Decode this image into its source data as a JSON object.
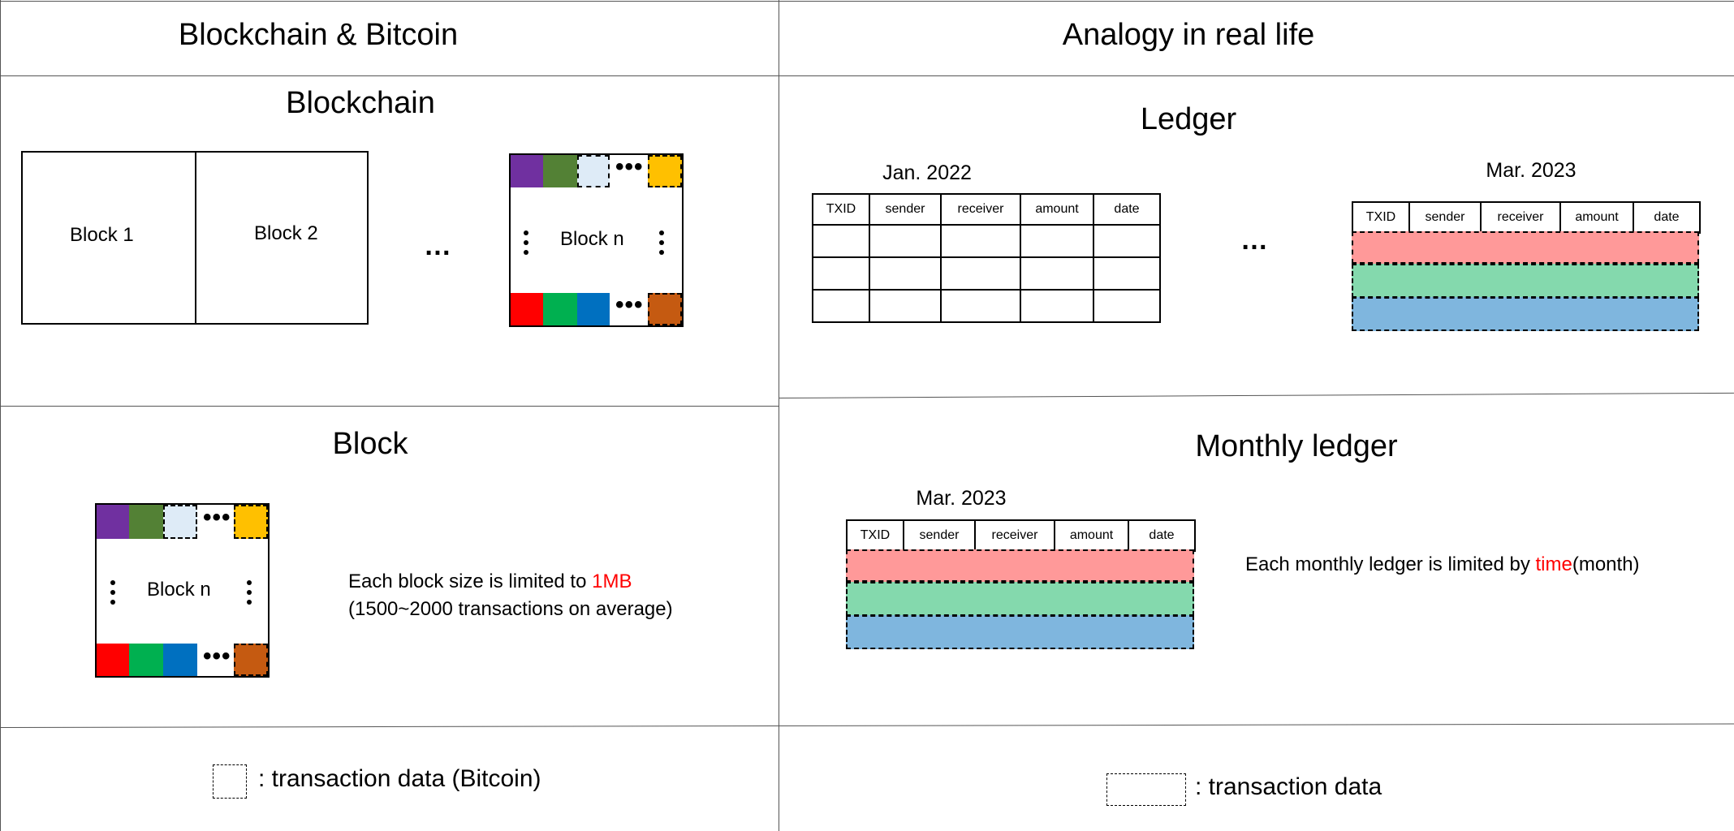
{
  "headers": {
    "left": "Blockchain & Bitcoin",
    "right": "Analogy in real life"
  },
  "sections": {
    "blockchain": {
      "title": "Blockchain",
      "block1": "Block 1",
      "block2": "Block 2",
      "ellipsis": "…",
      "blockn": "Block n"
    },
    "ledger": {
      "title": "Ledger",
      "ellipsis": "…",
      "table1_caption": "Jan. 2022",
      "table2_caption": "Mar. 2023"
    },
    "block": {
      "title": "Block",
      "blockn": "Block n",
      "desc_prefix": "Each block size is limited to ",
      "desc_highlight": "1MB",
      "desc_line2": "(1500~2000 transactions on average)"
    },
    "monthly": {
      "title": "Monthly ledger",
      "caption": "Mar. 2023",
      "desc_prefix": "Each monthly ledger is limited by ",
      "desc_highlight": "time",
      "desc_suffix": "(month)"
    }
  },
  "columns": [
    "TXID",
    "sender",
    "receiver",
    "amount",
    "date"
  ],
  "legend": {
    "left": ": transaction data (Bitcoin)",
    "right": ": transaction data"
  },
  "colors": {
    "purple": "#7030a0",
    "dark_green": "#538135",
    "light_blue": "#deebf7",
    "gold": "#ffc000",
    "red": "#ff0000",
    "green": "#00b050",
    "blue": "#0070c0",
    "orange": "#c55a11",
    "row_red": "#ff9999",
    "row_green": "#84d9ad",
    "row_blue": "#7fb6de",
    "highlight": "#ff0000"
  }
}
